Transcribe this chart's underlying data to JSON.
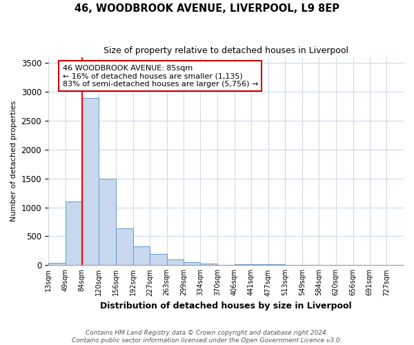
{
  "title": "46, WOODBROOK AVENUE, LIVERPOOL, L9 8EP",
  "subtitle": "Size of property relative to detached houses in Liverpool",
  "xlabel": "Distribution of detached houses by size in Liverpool",
  "ylabel": "Number of detached properties",
  "footnote1": "Contains HM Land Registry data © Crown copyright and database right 2024.",
  "footnote2": "Contains public sector information licensed under the Open Government Licence v3.0.",
  "bin_labels": [
    "13sqm",
    "49sqm",
    "84sqm",
    "120sqm",
    "156sqm",
    "192sqm",
    "227sqm",
    "263sqm",
    "299sqm",
    "334sqm",
    "370sqm",
    "406sqm",
    "441sqm",
    "477sqm",
    "513sqm",
    "549sqm",
    "584sqm",
    "620sqm",
    "656sqm",
    "691sqm",
    "727sqm"
  ],
  "bin_edges": [
    13,
    49,
    84,
    120,
    156,
    192,
    227,
    263,
    299,
    334,
    370,
    406,
    441,
    477,
    513,
    549,
    584,
    620,
    656,
    691,
    727
  ],
  "bar_heights": [
    40,
    1100,
    2900,
    1500,
    640,
    330,
    190,
    100,
    55,
    30,
    0,
    20,
    20,
    15,
    0,
    0,
    0,
    0,
    0,
    0,
    0
  ],
  "bar_color": "#c8d8ef",
  "bar_edge_color": "#6699cc",
  "red_line_x": 84,
  "ylim": [
    0,
    3600
  ],
  "yticks": [
    0,
    500,
    1000,
    1500,
    2000,
    2500,
    3000,
    3500
  ],
  "annotation_title": "46 WOODBROOK AVENUE: 85sqm",
  "annotation_line1": "← 16% of detached houses are smaller (1,135)",
  "annotation_line2": "83% of semi-detached houses are larger (5,756) →",
  "annotation_box_color": "#ffffff",
  "annotation_box_edge": "#cc0000",
  "background_color": "#ffffff",
  "grid_color": "#d0daea"
}
